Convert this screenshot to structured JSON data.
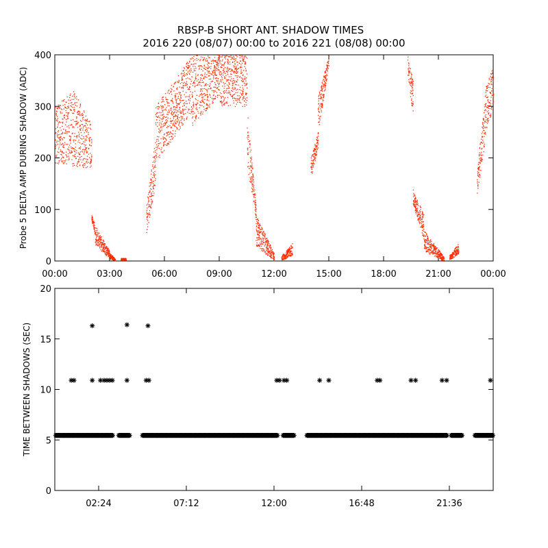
{
  "title_line1": "RBSP-B SHORT ANT. SHADOW TIMES",
  "title_line2": "2016 220 (08/07) 00:00 to 2016 221 (08/08) 00:00",
  "colors": {
    "top_series": "#ff2a00",
    "bottom_series": "#000000",
    "axes": "#000000"
  },
  "chart_data": [
    {
      "type": "scatter",
      "ylabel": "Probe 5 DELTA AMP DURING SHADOW (ADC)",
      "xlabel": "",
      "xlim_hours": [
        0,
        24
      ],
      "ylim": [
        0,
        400
      ],
      "x_tick_labels": [
        "00:00",
        "03:00",
        "06:00",
        "09:00",
        "12:00",
        "15:00",
        "18:00",
        "21:00",
        "00:00"
      ],
      "y_tick_labels": [
        "0",
        "100",
        "200",
        "300",
        "400"
      ],
      "marker": "dot",
      "series": [
        {
          "color": "#ff2a00",
          "segments": [
            {
              "x": [
                0.0,
                1.0
              ],
              "y": [
                [
                  190,
                  300
                ],
                [
                  185,
                  330
                ]
              ]
            },
            {
              "x": [
                1.0,
                2.0
              ],
              "y": [
                [
                  185,
                  330
                ],
                [
                  180,
                  270
                ]
              ]
            },
            {
              "x": [
                2.0,
                2.2
              ],
              "y": [
                [
                  80,
                  90
                ],
                [
                  50,
                  70
                ]
              ]
            },
            {
              "x": [
                2.2,
                3.0
              ],
              "y": [
                [
                  30,
                  70
                ],
                [
                  5,
                  20
                ]
              ]
            },
            {
              "x": [
                3.0,
                3.3
              ],
              "y": [
                [
                  5,
                  15
                ],
                [
                  0,
                  6
                ]
              ]
            },
            {
              "x": [
                3.6,
                3.9
              ],
              "y": [
                [
                  2,
                  6
                ],
                [
                  2,
                  6
                ]
              ]
            },
            {
              "x": [
                5.0,
                5.5
              ],
              "y": [
                [
                  50,
                  110
                ],
                [
                  150,
                  240
                ]
              ]
            },
            {
              "x": [
                5.5,
                7.5
              ],
              "y": [
                [
                  190,
                  300
                ],
                [
                  290,
                  400
                ]
              ]
            },
            {
              "x": [
                7.5,
                9.0
              ],
              "y": [
                [
                  260,
                  400
                ],
                [
                  320,
                  400
                ]
              ]
            },
            {
              "x": [
                9.0,
                10.5
              ],
              "y": [
                [
                  300,
                  400
                ],
                [
                  300,
                  400
                ]
              ]
            },
            {
              "x": [
                10.5,
                11.0
              ],
              "y": [
                [
                  190,
                  300
                ],
                [
                  80,
                  110
                ]
              ]
            },
            {
              "x": [
                11.0,
                12.0
              ],
              "y": [
                [
                  30,
                  90
                ],
                [
                  0,
                  15
                ]
              ]
            },
            {
              "x": [
                12.4,
                13.0
              ],
              "y": [
                [
                  2,
                  10
                ],
                [
                  10,
                  35
                ]
              ]
            },
            {
              "x": [
                14.0,
                14.4
              ],
              "y": [
                [
                  160,
                  200
                ],
                [
                  220,
                  250
                ]
              ]
            },
            {
              "x": [
                14.4,
                15.0
              ],
              "y": [
                [
                  250,
                  320
                ],
                [
                  380,
                  400
                ]
              ]
            },
            {
              "x": [
                19.3,
                19.6
              ],
              "y": [
                [
                  360,
                  400
                ],
                [
                  280,
                  350
                ]
              ]
            },
            {
              "x": [
                19.6,
                20.2
              ],
              "y": [
                [
                  110,
                  140
                ],
                [
                  40,
                  90
                ]
              ]
            },
            {
              "x": [
                20.2,
                21.3
              ],
              "y": [
                [
                  20,
                  60
                ],
                [
                  0,
                  8
                ]
              ]
            },
            {
              "x": [
                21.6,
                22.1
              ],
              "y": [
                [
                  2,
                  12
                ],
                [
                  15,
                  35
                ]
              ]
            },
            {
              "x": [
                23.1,
                23.5
              ],
              "y": [
                [
                  130,
                  180
                ],
                [
                  220,
                  300
                ]
              ]
            },
            {
              "x": [
                23.5,
                24.0
              ],
              "y": [
                [
                  240,
                  330
                ],
                [
                  300,
                  380
                ]
              ]
            }
          ]
        }
      ]
    },
    {
      "type": "scatter",
      "ylabel": "TIME BETWEEN SHADOWS (SEC)",
      "xlabel": "",
      "xlim_hours": [
        0,
        24
      ],
      "ylim": [
        0,
        20
      ],
      "x_tick_labels": [
        "02:24",
        "07:12",
        "12:00",
        "16:48",
        "21:36"
      ],
      "x_tick_hours": [
        2.4,
        7.2,
        12.0,
        16.8,
        21.6
      ],
      "y_tick_labels": [
        "0",
        "5",
        "10",
        "15",
        "20"
      ],
      "marker": "asterisk",
      "baseline_value": 5.45,
      "baseline_ranges": [
        [
          0.05,
          3.2
        ],
        [
          3.5,
          4.1
        ],
        [
          4.8,
          12.2
        ],
        [
          12.5,
          13.1
        ],
        [
          13.8,
          21.5
        ],
        [
          21.7,
          22.3
        ],
        [
          23.0,
          24.0
        ]
      ],
      "points": [
        {
          "x": 0.9,
          "y": 10.9
        },
        {
          "x": 1.05,
          "y": 10.9
        },
        {
          "x": 2.05,
          "y": 10.9
        },
        {
          "x": 2.05,
          "y": 16.3
        },
        {
          "x": 2.5,
          "y": 10.9
        },
        {
          "x": 2.7,
          "y": 10.9
        },
        {
          "x": 2.85,
          "y": 10.9
        },
        {
          "x": 3.0,
          "y": 10.9
        },
        {
          "x": 3.15,
          "y": 10.9
        },
        {
          "x": 3.95,
          "y": 16.4
        },
        {
          "x": 3.95,
          "y": 10.9
        },
        {
          "x": 5.0,
          "y": 10.9
        },
        {
          "x": 5.15,
          "y": 10.9
        },
        {
          "x": 5.1,
          "y": 16.3
        },
        {
          "x": 12.15,
          "y": 10.9
        },
        {
          "x": 12.3,
          "y": 10.9
        },
        {
          "x": 12.55,
          "y": 10.9
        },
        {
          "x": 12.7,
          "y": 10.9
        },
        {
          "x": 14.5,
          "y": 10.9
        },
        {
          "x": 15.0,
          "y": 10.9
        },
        {
          "x": 17.65,
          "y": 10.9
        },
        {
          "x": 17.8,
          "y": 10.9
        },
        {
          "x": 19.5,
          "y": 10.9
        },
        {
          "x": 19.75,
          "y": 10.9
        },
        {
          "x": 21.2,
          "y": 10.9
        },
        {
          "x": 21.45,
          "y": 10.9
        },
        {
          "x": 23.85,
          "y": 10.9
        }
      ]
    }
  ]
}
